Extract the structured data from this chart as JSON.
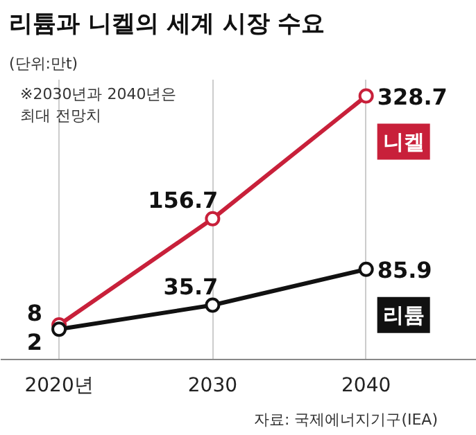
{
  "chart_data": {
    "type": "line",
    "title": "리튬과 니켈의 세계 시장 수요",
    "subtitle": "(단위:만t)",
    "categories": [
      "2020년",
      "2030",
      "2040"
    ],
    "series": [
      {
        "name": "니켈",
        "color": "#c8203a",
        "values": [
          8,
          156.7,
          328.7
        ]
      },
      {
        "name": "리튬",
        "color": "#111111",
        "values": [
          2,
          35.7,
          85.9
        ]
      }
    ],
    "annotations": [
      "※2030년과 2040년은\n최대 전망치",
      "자료: 국제에너지기구(IEA)"
    ],
    "data_labels": true,
    "marker": "circle",
    "line_style": "solid",
    "grid": "x"
  }
}
